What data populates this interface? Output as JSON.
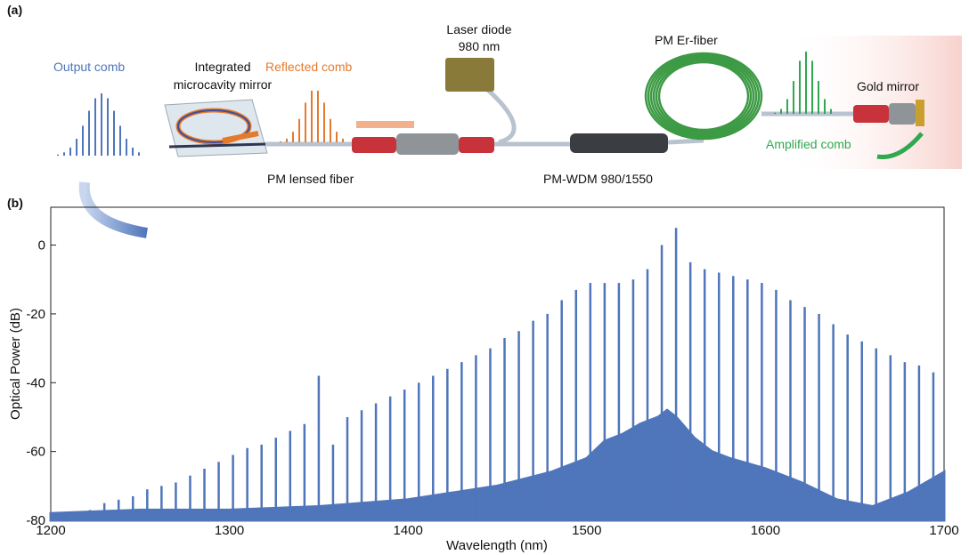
{
  "panel_a": {
    "panel_label": "(a)",
    "output_comb": "Output comb",
    "mirror_line1": "Integrated",
    "mirror_line2": "microcavity mirror",
    "reflected_comb": "Reflected comb",
    "laser_line1": "Laser diode",
    "laser_line2": "980 nm",
    "er_fiber": "PM Er-fiber",
    "gold_mirror": "Gold mirror",
    "amplified_comb": "Amplified comb",
    "lensed_fiber": "PM lensed fiber",
    "wdm": "PM-WDM 980/1550"
  },
  "chart_data": {
    "type": "comb",
    "panel_label": "(b)",
    "x_label": "Wavelength (nm)",
    "y_label": "Optical Power (dB)",
    "xlim": [
      1200,
      1700
    ],
    "ylim": [
      -80,
      11
    ],
    "xticks": [
      1200,
      1300,
      1400,
      1500,
      1600,
      1700
    ],
    "yticks": [
      -80,
      -60,
      -40,
      -20,
      0
    ],
    "color": "#4f75ba",
    "comb": {
      "x": [
        1222,
        1230,
        1238,
        1246,
        1254,
        1262,
        1270,
        1278,
        1286,
        1294,
        1302,
        1310,
        1318,
        1326,
        1334,
        1342,
        1350,
        1358,
        1366,
        1374,
        1382,
        1390,
        1398,
        1406,
        1414,
        1422,
        1430,
        1438,
        1446,
        1454,
        1462,
        1470,
        1478,
        1486,
        1494,
        1502,
        1510,
        1518,
        1526,
        1534,
        1542,
        1550,
        1558,
        1566,
        1574,
        1582,
        1590,
        1598,
        1606,
        1614,
        1622,
        1630,
        1638,
        1646,
        1654,
        1662,
        1670,
        1678,
        1686,
        1694
      ],
      "values": [
        -77,
        -75,
        -74,
        -73,
        -71,
        -70,
        -69,
        -67,
        -65,
        -63,
        -61,
        -59,
        -58,
        -56,
        -54,
        -52,
        -38,
        -58,
        -50,
        -48,
        -46,
        -44,
        -42,
        -40,
        -38,
        -36,
        -34,
        -32,
        -30,
        -27,
        -25,
        -22,
        -20,
        -16,
        -13,
        -11,
        -11,
        -11,
        -10,
        -7,
        0,
        5,
        -5,
        -7,
        -8,
        -9,
        -10,
        -11,
        -13,
        -16,
        -18,
        -20,
        -23,
        -26,
        -28,
        -30,
        -32,
        -34,
        -35,
        -37
      ]
    },
    "floor": {
      "x": [
        1200,
        1250,
        1300,
        1350,
        1400,
        1450,
        1480,
        1500,
        1510,
        1520,
        1530,
        1540,
        1545,
        1550,
        1560,
        1570,
        1580,
        1600,
        1620,
        1640,
        1660,
        1680,
        1700
      ],
      "values": [
        -78,
        -77,
        -77,
        -76,
        -74,
        -70,
        -66,
        -62,
        -57,
        -55,
        -52,
        -50,
        -48,
        -50,
        -56,
        -60,
        -62,
        -65,
        -69,
        -74,
        -76,
        -72,
        -66
      ]
    }
  }
}
